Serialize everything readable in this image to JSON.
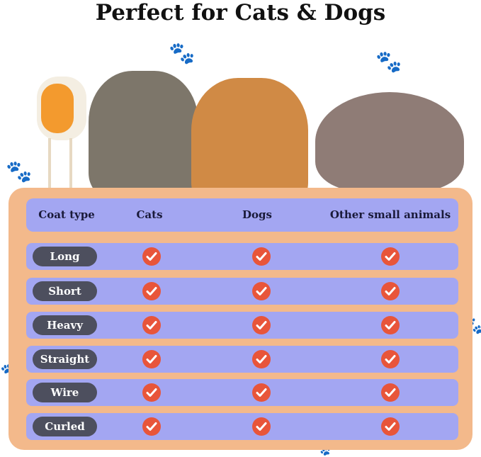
{
  "title": "Perfect for Cats & Dogs",
  "table": {
    "headers": [
      "Coat type",
      "Cats",
      "Dogs",
      "Other small animals"
    ],
    "rows": [
      {
        "label": "Long",
        "cats": true,
        "dogs": true,
        "other": true
      },
      {
        "label": "Short",
        "cats": true,
        "dogs": true,
        "other": true
      },
      {
        "label": "Heavy",
        "cats": true,
        "dogs": true,
        "other": true
      },
      {
        "label": "Straight",
        "cats": true,
        "dogs": true,
        "other": true
      },
      {
        "label": "Wire",
        "cats": true,
        "dogs": true,
        "other": true
      },
      {
        "label": "Curled",
        "cats": true,
        "dogs": true,
        "other": true
      }
    ]
  },
  "colors": {
    "frame": "#f3b98b",
    "row": "#a3a6f2",
    "pill": "#4d4f5e",
    "check": "#e8553a"
  }
}
